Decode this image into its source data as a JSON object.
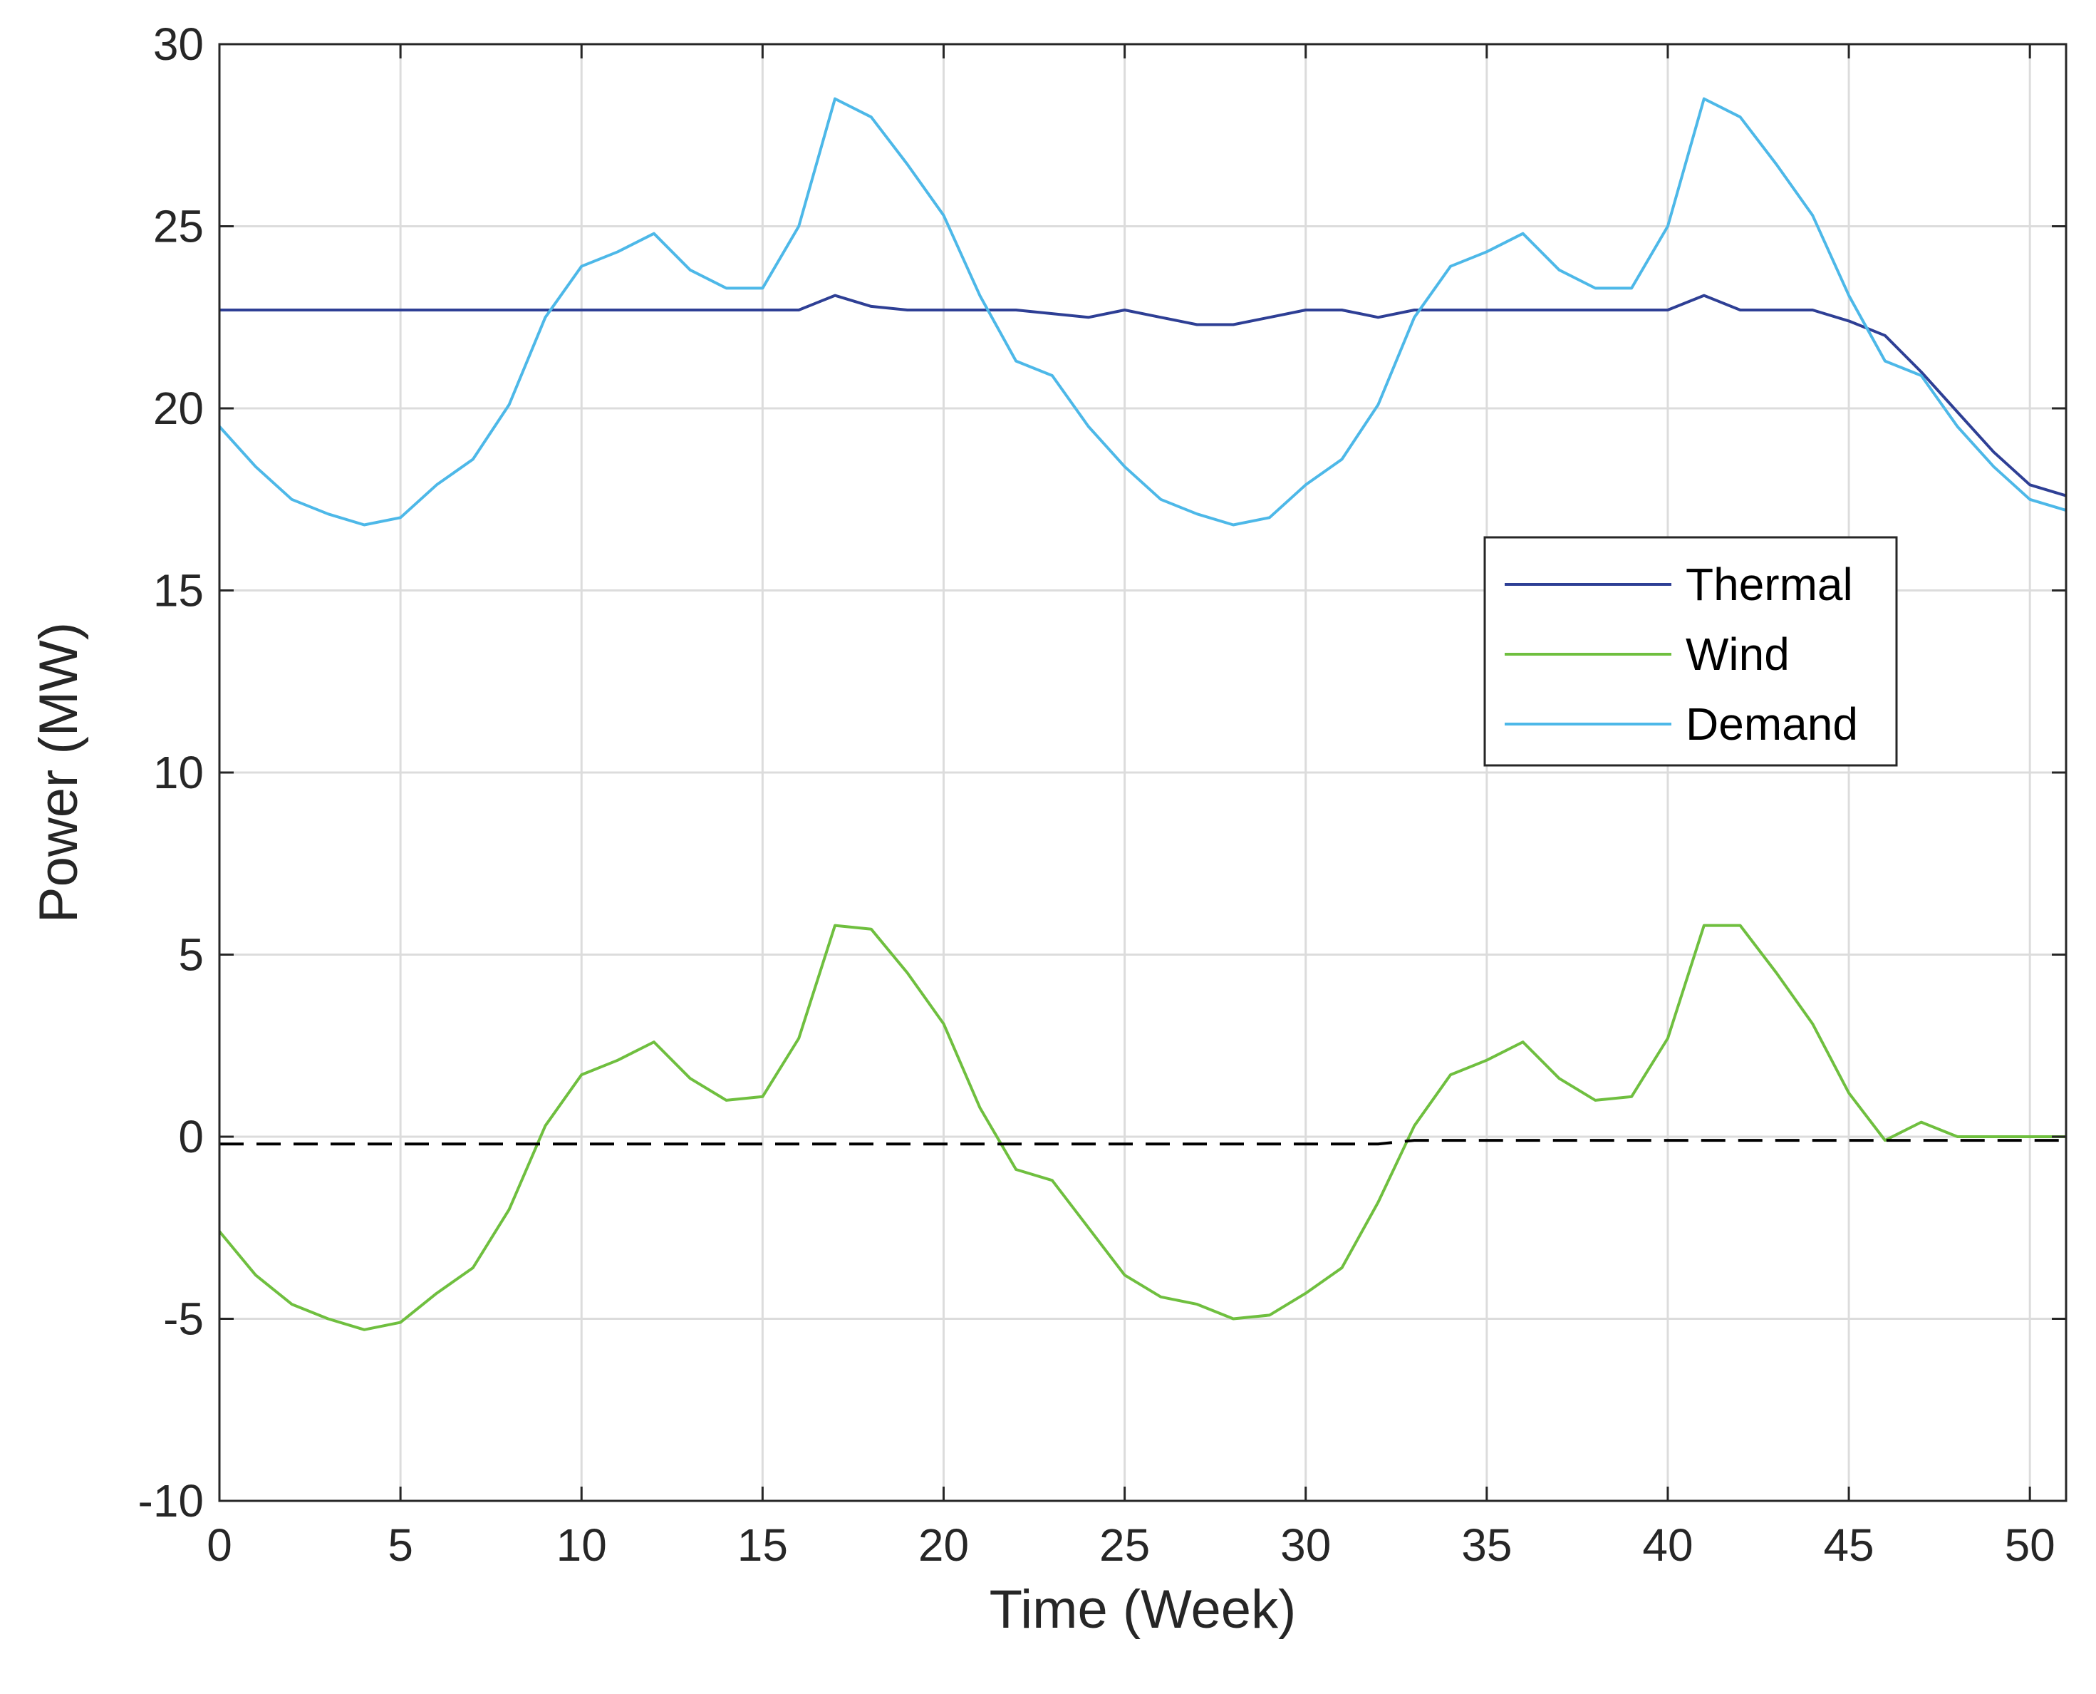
{
  "chart_data": {
    "type": "line",
    "title": "",
    "xlabel": "Time (Week)",
    "ylabel": "Power (MW)",
    "xlim": [
      0,
      51
    ],
    "ylim": [
      -10,
      30
    ],
    "xticks": [
      0,
      5,
      10,
      15,
      20,
      25,
      30,
      35,
      40,
      45,
      50
    ],
    "yticks": [
      -10,
      -5,
      0,
      5,
      10,
      15,
      20,
      25,
      30
    ],
    "grid": true,
    "legend_position": "center-right",
    "x": [
      0,
      1,
      2,
      3,
      4,
      5,
      6,
      7,
      8,
      9,
      10,
      11,
      12,
      13,
      14,
      15,
      16,
      17,
      18,
      19,
      20,
      21,
      22,
      23,
      24,
      25,
      26,
      27,
      28,
      29,
      30,
      31,
      32,
      33,
      34,
      35,
      36,
      37,
      38,
      39,
      40,
      41,
      42,
      43,
      44,
      45,
      46,
      47,
      48,
      49,
      50,
      51
    ],
    "series": [
      {
        "name": "Thermal",
        "color": "#2e3f95",
        "style": "solid",
        "values": [
          22.7,
          22.7,
          22.7,
          22.7,
          22.7,
          22.7,
          22.7,
          22.7,
          22.7,
          22.7,
          22.7,
          22.7,
          22.7,
          22.7,
          22.7,
          22.7,
          22.7,
          23.1,
          22.8,
          22.7,
          22.7,
          22.7,
          22.7,
          22.6,
          22.5,
          22.7,
          22.5,
          22.3,
          22.3,
          22.5,
          22.7,
          22.7,
          22.5,
          22.7,
          22.7,
          22.7,
          22.7,
          22.7,
          22.7,
          22.7,
          22.7,
          23.1,
          22.7,
          22.7,
          22.7,
          22.4,
          22.0,
          21.0,
          19.9,
          18.8,
          17.9,
          17.6
        ]
      },
      {
        "name": "Wind",
        "color": "#6fbf3f",
        "style": "solid",
        "values": [
          -2.6,
          -3.8,
          -4.6,
          -5.0,
          -5.3,
          -5.1,
          -4.3,
          -3.6,
          -2.0,
          0.3,
          1.7,
          2.1,
          2.6,
          1.6,
          1.0,
          1.1,
          2.7,
          5.8,
          5.7,
          4.5,
          3.1,
          0.8,
          -0.9,
          -1.2,
          -2.5,
          -3.8,
          -4.4,
          -4.6,
          -5.0,
          -4.9,
          -4.3,
          -3.6,
          -1.8,
          0.3,
          1.7,
          2.1,
          2.6,
          1.6,
          1.0,
          1.1,
          2.7,
          5.8,
          5.8,
          4.5,
          3.1,
          1.2,
          -0.1,
          0.4,
          0.0,
          0.0,
          0.0,
          0.0
        ]
      },
      {
        "name": "Demand",
        "color": "#4db8e8",
        "style": "solid",
        "values": [
          19.5,
          18.4,
          17.5,
          17.1,
          16.8,
          17.0,
          17.9,
          18.6,
          20.1,
          22.5,
          23.9,
          24.3,
          24.8,
          23.8,
          23.3,
          23.3,
          25.0,
          28.5,
          28.0,
          26.7,
          25.3,
          23.1,
          21.3,
          20.9,
          19.5,
          18.4,
          17.5,
          17.1,
          16.8,
          17.0,
          17.9,
          18.6,
          20.1,
          22.5,
          23.9,
          24.3,
          24.8,
          23.8,
          23.3,
          23.3,
          25.0,
          28.5,
          28.0,
          26.7,
          25.3,
          23.1,
          21.3,
          20.9,
          19.5,
          18.4,
          17.5,
          17.2
        ]
      },
      {
        "name": "",
        "color": "#000000",
        "style": "dashed",
        "in_legend": false,
        "values": [
          -0.2,
          -0.2,
          -0.2,
          -0.2,
          -0.2,
          -0.2,
          -0.2,
          -0.2,
          -0.2,
          -0.2,
          -0.2,
          -0.2,
          -0.2,
          -0.2,
          -0.2,
          -0.2,
          -0.2,
          -0.2,
          -0.2,
          -0.2,
          -0.2,
          -0.2,
          -0.2,
          -0.2,
          -0.2,
          -0.2,
          -0.2,
          -0.2,
          -0.2,
          -0.2,
          -0.2,
          -0.2,
          -0.2,
          -0.1,
          -0.1,
          -0.1,
          -0.1,
          -0.1,
          -0.1,
          -0.1,
          -0.1,
          -0.1,
          -0.1,
          -0.1,
          -0.1,
          -0.1,
          -0.1,
          -0.1,
          -0.1,
          -0.1,
          -0.1,
          -0.1
        ]
      }
    ],
    "legend": [
      "Thermal",
      "Wind",
      "Demand"
    ]
  }
}
